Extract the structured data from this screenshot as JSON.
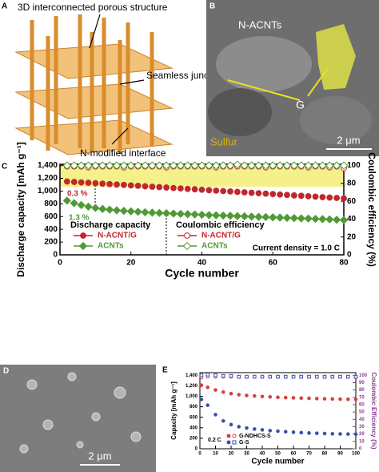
{
  "panel_a": {
    "label": "A",
    "annotations": [
      "3D interconnected porous structure",
      "Seamless junction",
      "N-modified interface"
    ]
  },
  "panel_b": {
    "label": "B",
    "annotations": [
      "N-ACNTs",
      "G",
      "Sulfur"
    ],
    "scale_bar": "2 μm"
  },
  "panel_d": {
    "label": "D",
    "scale_bar": "2 μm"
  },
  "chart_data": [
    {
      "type": "scatter",
      "panel_label": "C",
      "xlabel": "Cycle number",
      "ylabel": "Discharge capacity [mAh g⁻¹]",
      "y2label": "Coulombic efficiency (%)",
      "xlim": [
        0,
        80
      ],
      "xticks": [
        0,
        20,
        40,
        60,
        80
      ],
      "ylim": [
        0,
        1420
      ],
      "yticks": [
        0,
        200,
        400,
        600,
        800,
        {
          "value": 1000,
          "label": "1,000"
        },
        {
          "value": 1200,
          "label": "1,200"
        },
        {
          "value": 1400,
          "label": "1,400"
        }
      ],
      "y2lim": [
        0,
        101.4
      ],
      "y2ticks": [
        0,
        20,
        40,
        60,
        80,
        100
      ],
      "annotations": [
        "0.3 %",
        "1.3 %"
      ],
      "legend_headers": [
        "Discharge capacity",
        "Coulombic efficiency"
      ],
      "note": "Current density = 1.0 C",
      "x": [
        2,
        4,
        6,
        8,
        10,
        12,
        14,
        16,
        18,
        20,
        22,
        24,
        26,
        28,
        30,
        32,
        34,
        36,
        38,
        40,
        42,
        44,
        46,
        48,
        50,
        52,
        54,
        56,
        58,
        60,
        62,
        64,
        66,
        68,
        70,
        72,
        74,
        76,
        78,
        80
      ],
      "series": [
        {
          "name": "N-ACNT/G",
          "color": "#c0272d",
          "marker": "o",
          "filled": true,
          "values": [
            1150,
            1143,
            1136,
            1130,
            1123,
            1116,
            1109,
            1102,
            1096,
            1089,
            1082,
            1075,
            1068,
            1062,
            1055,
            1048,
            1041,
            1034,
            1028,
            1021,
            1014,
            1007,
            1000,
            994,
            987,
            980,
            973,
            966,
            960,
            953,
            946,
            939,
            932,
            926,
            919,
            912,
            905,
            898,
            892,
            885
          ]
        },
        {
          "name": "ACNTs",
          "color": "#4f9a35",
          "marker": "D",
          "filled": true,
          "values": [
            850,
            810,
            780,
            755,
            735,
            720,
            708,
            698,
            690,
            682,
            675,
            668,
            662,
            657,
            652,
            647,
            642,
            637,
            633,
            628,
            624,
            620,
            616,
            612,
            608,
            604,
            600,
            596,
            592,
            588,
            584,
            580,
            576,
            572,
            568,
            564,
            560,
            556,
            550,
            545
          ]
        },
        {
          "name": "N-ACNT/G",
          "color": "#c0272d",
          "marker": "o",
          "filled": false,
          "axis": "y2",
          "values": [
            99,
            99,
            99,
            98,
            99,
            99,
            99,
            99,
            98,
            99,
            99,
            99,
            99,
            99,
            98,
            99,
            99,
            99,
            99,
            99,
            99,
            98,
            99,
            99,
            99,
            99,
            99,
            99,
            98,
            99,
            99,
            99,
            99,
            99,
            98,
            99,
            99,
            98,
            99,
            97
          ]
        },
        {
          "name": "ACNTs",
          "color": "#4f9a35",
          "marker": "D",
          "filled": false,
          "axis": "y2",
          "values": [
            100,
            100,
            100,
            100,
            100,
            100,
            100,
            100,
            100,
            100,
            100,
            100,
            100,
            100,
            100,
            100,
            100,
            100,
            100,
            100,
            100,
            100,
            100,
            100,
            101,
            100,
            100,
            100,
            100,
            100,
            100,
            100,
            100,
            100,
            100,
            100,
            100,
            100,
            100,
            100
          ]
        }
      ]
    },
    {
      "type": "scatter",
      "panel_label": "E",
      "xlabel": "Cycle number",
      "ylabel": "Capacity [mAh g⁻¹]",
      "y2label": "Coulombic Efficiency (%)",
      "y2_color": "#8a3c8f",
      "xlim": [
        0,
        100
      ],
      "xticks": [
        0,
        10,
        20,
        30,
        40,
        50,
        60,
        70,
        80,
        90,
        100
      ],
      "ylim": [
        0,
        1450
      ],
      "yticks": [
        0,
        200,
        400,
        600,
        800,
        {
          "value": 1000,
          "label": "1,000"
        },
        {
          "value": 1200,
          "label": "1,200"
        },
        {
          "value": 1400,
          "label": "1,400"
        }
      ],
      "y2lim": [
        0,
        103.6
      ],
      "y2ticks": [
        0,
        10,
        20,
        30,
        40,
        50,
        60,
        70,
        80,
        90,
        100
      ],
      "annotations": [
        "0.2 C"
      ],
      "x": [
        1,
        5,
        10,
        15,
        20,
        25,
        30,
        35,
        40,
        45,
        50,
        55,
        60,
        65,
        70,
        75,
        80,
        85,
        90,
        95,
        100
      ],
      "series": [
        {
          "name": "G-NDHCS-S",
          "color": "#d9403a",
          "marker": "o",
          "filled": true,
          "values": [
            1210,
            1170,
            1120,
            1080,
            1050,
            1030,
            1015,
            1005,
            995,
            988,
            980,
            975,
            970,
            965,
            960,
            955,
            952,
            948,
            945,
            942,
            940
          ]
        },
        {
          "name": "G-S",
          "color": "#3b4fb0",
          "marker": "o",
          "filled": true,
          "values": [
            940,
            830,
            650,
            530,
            460,
            420,
            395,
            375,
            360,
            345,
            335,
            325,
            315,
            308,
            300,
            295,
            290,
            285,
            282,
            280,
            278
          ]
        },
        {
          "color": "#d9403a",
          "marker": "o",
          "filled": false,
          "axis": "y2",
          "values": [
            97,
            98,
            98,
            98,
            98,
            98,
            98,
            98,
            98,
            98,
            98,
            98,
            98,
            98,
            98,
            98,
            98,
            98,
            98,
            98,
            98
          ]
        },
        {
          "color": "#3b4fb0",
          "marker": "s",
          "filled": false,
          "axis": "y2",
          "values": [
            100,
            101,
            100,
            99,
            99,
            98,
            98,
            98,
            98,
            98,
            98,
            98,
            98,
            98,
            98,
            98,
            98,
            98,
            98,
            98,
            98
          ]
        }
      ]
    }
  ]
}
